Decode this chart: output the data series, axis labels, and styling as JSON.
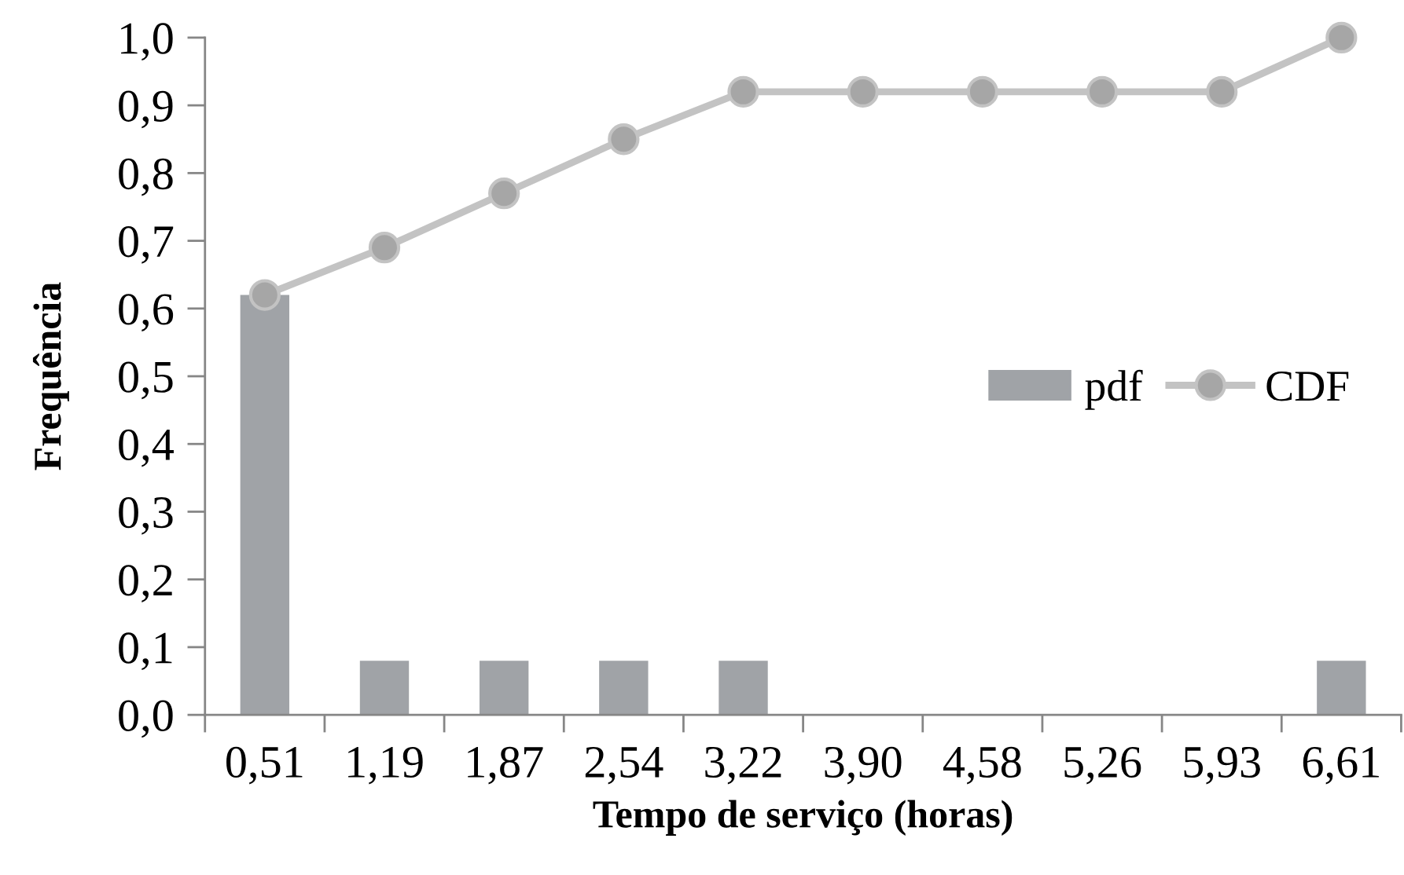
{
  "chart_data": {
    "type": "bar",
    "xlabel": "Tempo de serviço (horas)",
    "ylabel": "Frequência",
    "categories": [
      "0,51",
      "1,19",
      "1,87",
      "2,54",
      "3,22",
      "3,90",
      "4,58",
      "5,26",
      "5,93",
      "6,61"
    ],
    "series": [
      {
        "name": "pdf",
        "color": "#a0a3a7",
        "values": [
          0.62,
          0.08,
          0.08,
          0.08,
          0.08,
          0,
          0,
          0,
          0,
          0.08
        ]
      },
      {
        "name": "CDF",
        "type": "line",
        "color": "#c3c3c3",
        "colors": [
          "#a6a6a6",
          "#a6a6a6",
          "#a6a6a6",
          "#a6a6a6",
          "#a6a6a6",
          "#a6a6a6",
          "#a6a6a6",
          "#a6a6a6",
          "#a6a6a6",
          "#a6a6a6"
        ],
        "marker": "circle",
        "values": [
          0.62,
          0.69,
          0.77,
          0.85,
          0.92,
          0.92,
          0.92,
          0.92,
          0.92,
          1.0
        ]
      }
    ],
    "ylim": [
      0,
      1
    ],
    "yticks": [
      {
        "value": 0,
        "label": "0,0"
      },
      {
        "value": 0.1,
        "label": "0,1"
      },
      {
        "value": 0.2,
        "label": "0,2"
      },
      {
        "value": 0.3,
        "label": "0,3"
      },
      {
        "value": 0.4,
        "label": "0,4"
      },
      {
        "value": 0.5,
        "label": "0,5"
      },
      {
        "value": 0.6,
        "label": "0,6"
      },
      {
        "value": 0.7,
        "label": "0,7"
      },
      {
        "value": 0.8,
        "label": "0,8"
      },
      {
        "value": 0.9,
        "label": "0,9"
      },
      {
        "value": 1.0,
        "label": "1,0"
      }
    ],
    "legend": "right",
    "grid": false
  }
}
